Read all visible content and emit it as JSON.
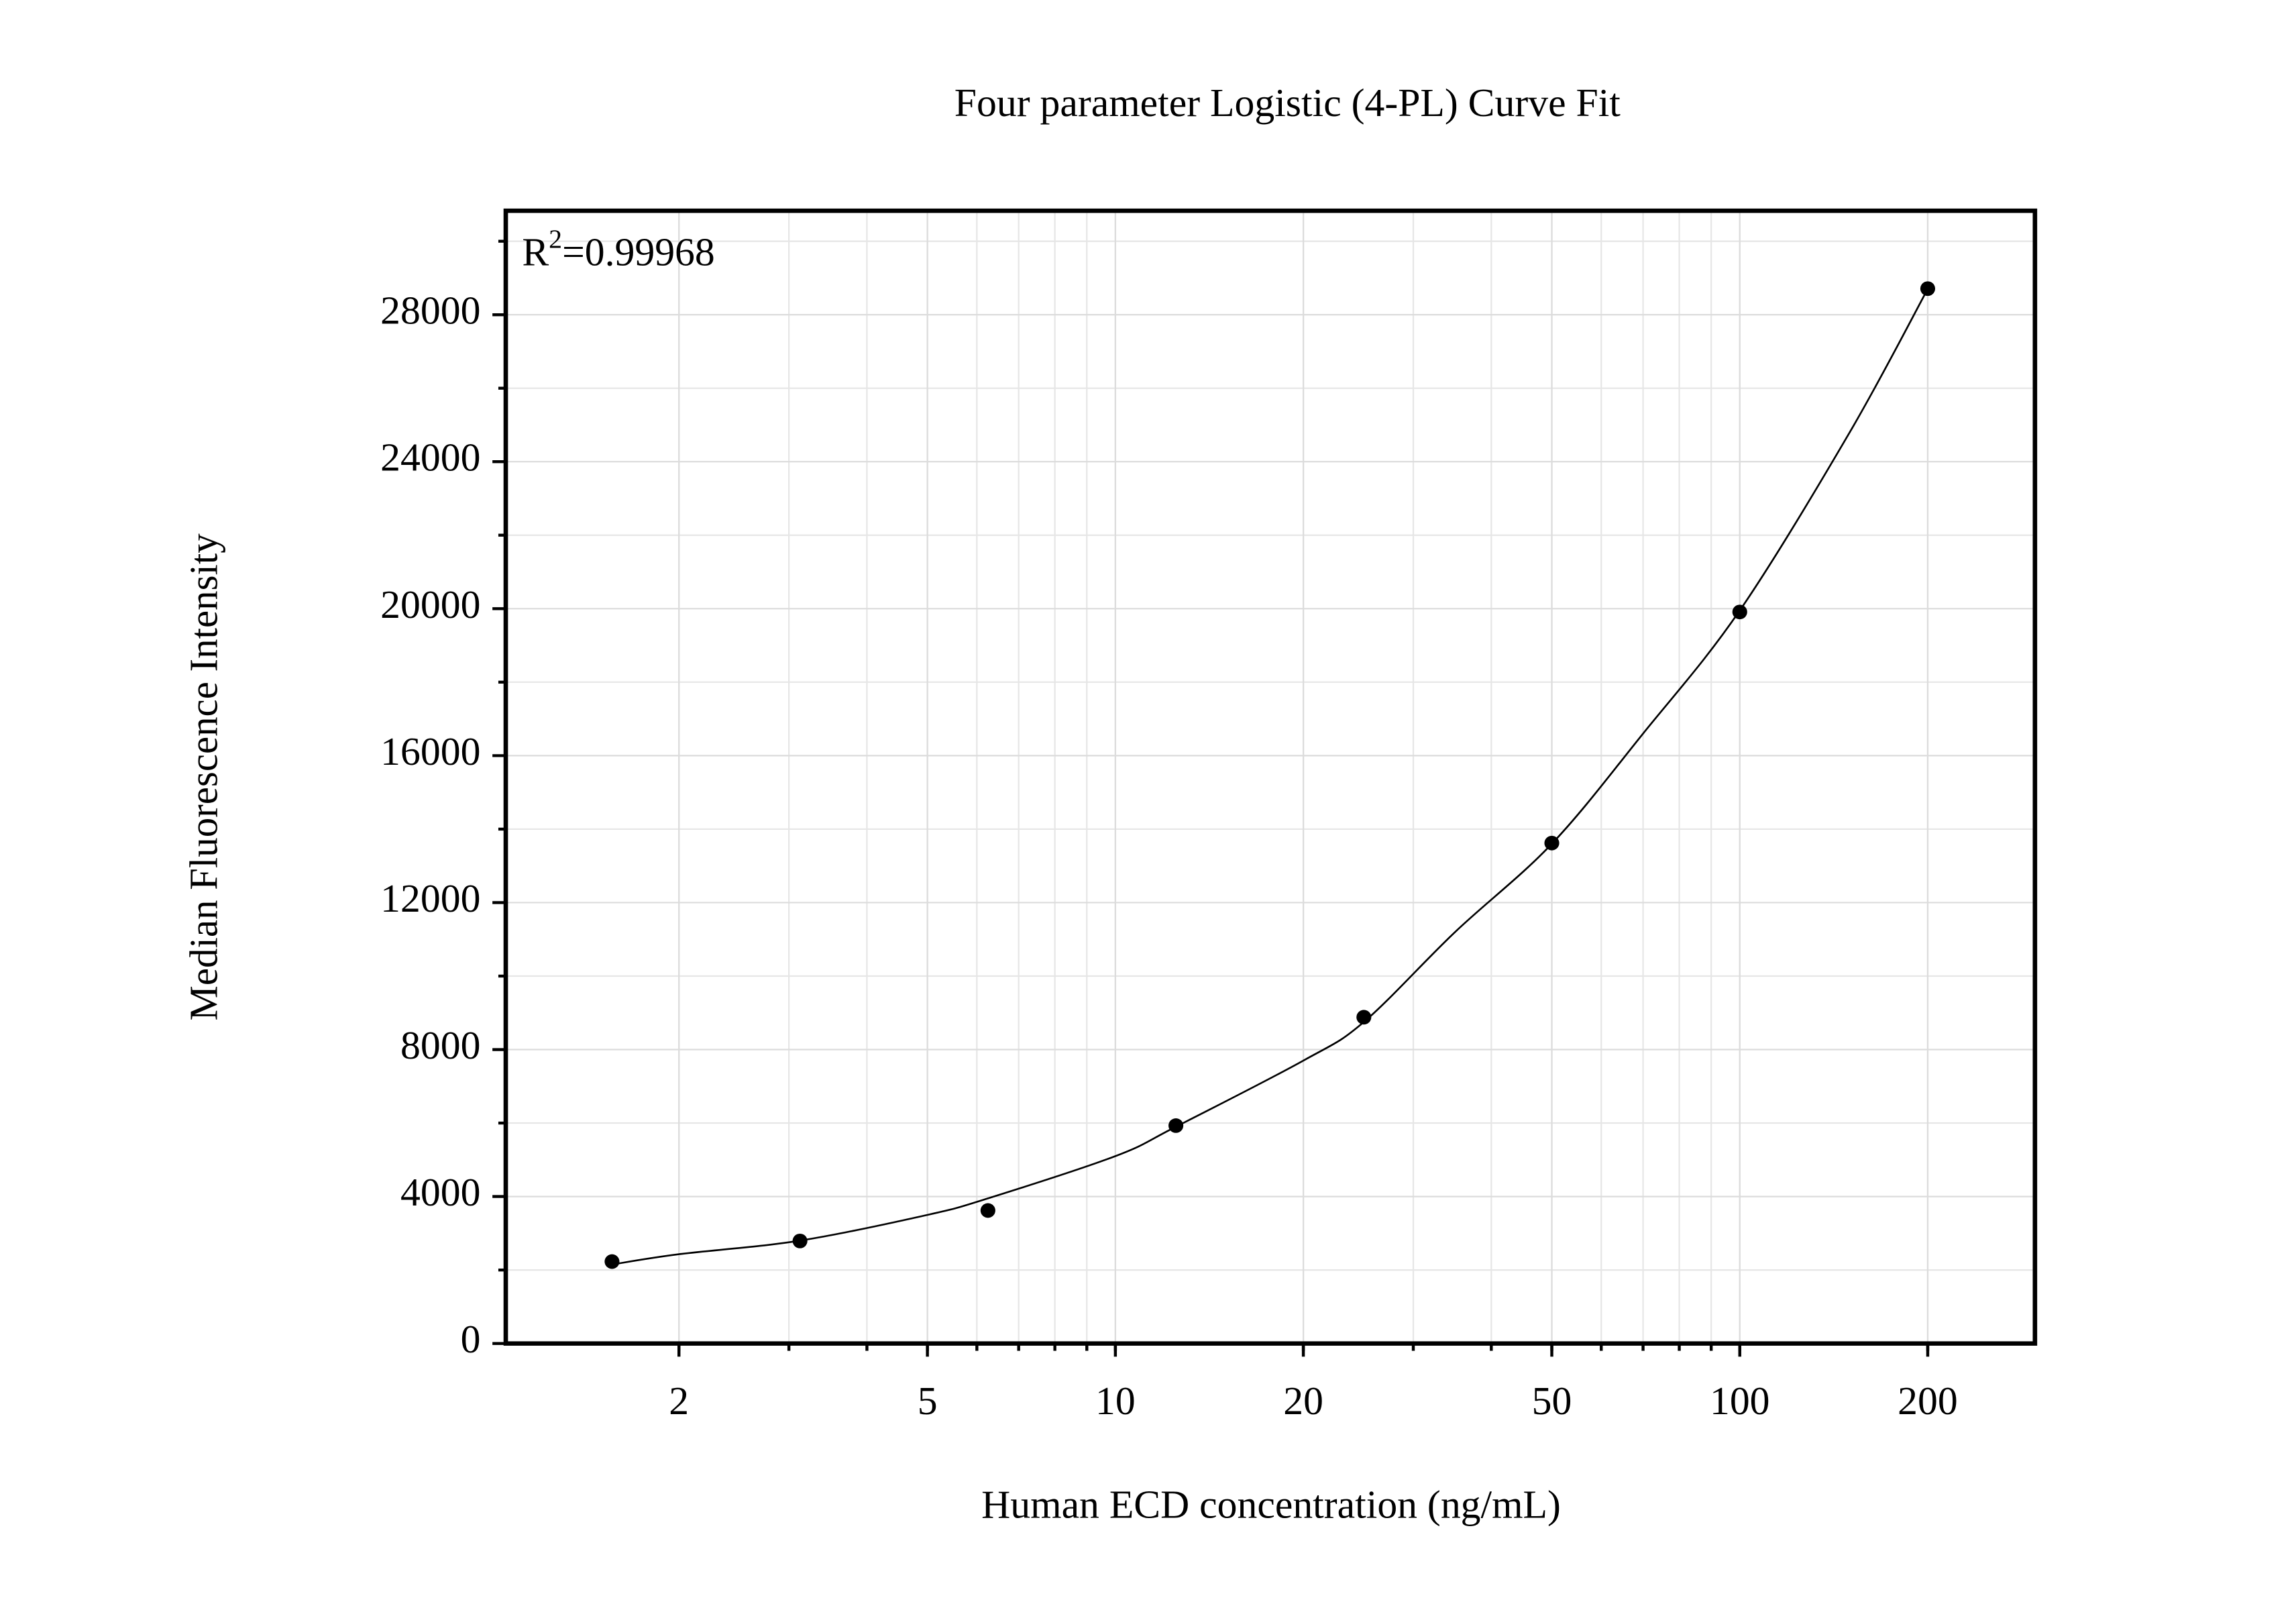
{
  "chart_data": {
    "type": "scatter",
    "title": "Four parameter Logistic (4-PL) Curve Fit",
    "x_label": "Human ECD concentration (ng/mL)",
    "y_label": "Median Fluorescence Intensity",
    "annotation": {
      "base": "R",
      "exponent": "2",
      "rest": "=0.99968"
    },
    "x_scale": "log",
    "x": [
      1.5625,
      3.125,
      6.25,
      12.5,
      25,
      50,
      100,
      200
    ],
    "values": [
      2230,
      2790,
      3620,
      5930,
      8880,
      13620,
      19910,
      28710
    ],
    "color": "#000000",
    "fit_curve": {
      "x": [
        1.5625,
        2,
        3.125,
        5,
        6.25,
        10,
        12.5,
        20,
        25,
        35,
        50,
        70,
        100,
        150,
        200
      ],
      "values": [
        2150,
        2430,
        2800,
        3500,
        3950,
        5100,
        5900,
        7700,
        8750,
        11200,
        13600,
        16600,
        19950,
        24800,
        28700
      ],
      "color": "#000000"
    },
    "xlim": [
      1.056,
      297
    ],
    "ylim": [
      0,
      30830
    ],
    "xticks": [
      2,
      5,
      10,
      20,
      50,
      100,
      200
    ],
    "yticks": [
      0,
      4000,
      8000,
      12000,
      16000,
      20000,
      24000,
      28000
    ],
    "grid": true
  }
}
